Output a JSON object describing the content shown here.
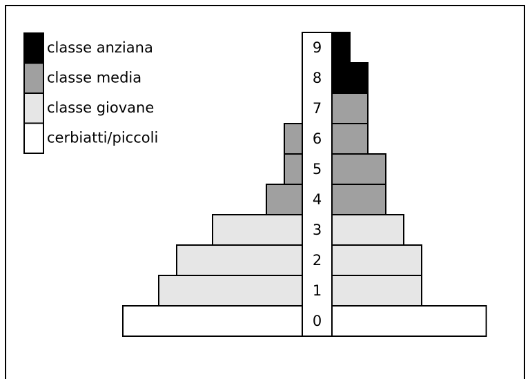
{
  "chart_data": {
    "type": "pyramid",
    "categories": [
      "0",
      "1",
      "2",
      "3",
      "4",
      "5",
      "6",
      "7",
      "8",
      "9"
    ],
    "series": [
      {
        "name": "classe anziana",
        "color": "#000000",
        "values_left": [
          null,
          null,
          null,
          null,
          null,
          null,
          null,
          null,
          0,
          0
        ],
        "values_right": [
          null,
          null,
          null,
          null,
          null,
          null,
          null,
          null,
          2,
          1
        ]
      },
      {
        "name": "classe media",
        "color": "#a0a0a0",
        "values_left": [
          null,
          null,
          null,
          null,
          2,
          1,
          1,
          0,
          null,
          null
        ],
        "values_right": [
          null,
          null,
          null,
          null,
          3,
          3,
          2,
          2,
          null,
          null
        ]
      },
      {
        "name": "classe giovane",
        "color": "#e6e6e6",
        "values_left": [
          null,
          8,
          7,
          5,
          null,
          null,
          null,
          null,
          null,
          null
        ],
        "values_right": [
          null,
          5,
          5,
          4,
          null,
          null,
          null,
          null,
          null,
          null
        ]
      },
      {
        "name": "cerbiatti/piccoli",
        "color": "#ffffff",
        "values_left": [
          10,
          null,
          null,
          null,
          null,
          null,
          null,
          null,
          null,
          null
        ],
        "values_right": [
          8.6,
          null,
          null,
          null,
          null,
          null,
          null,
          null,
          null,
          null
        ]
      }
    ]
  }
}
